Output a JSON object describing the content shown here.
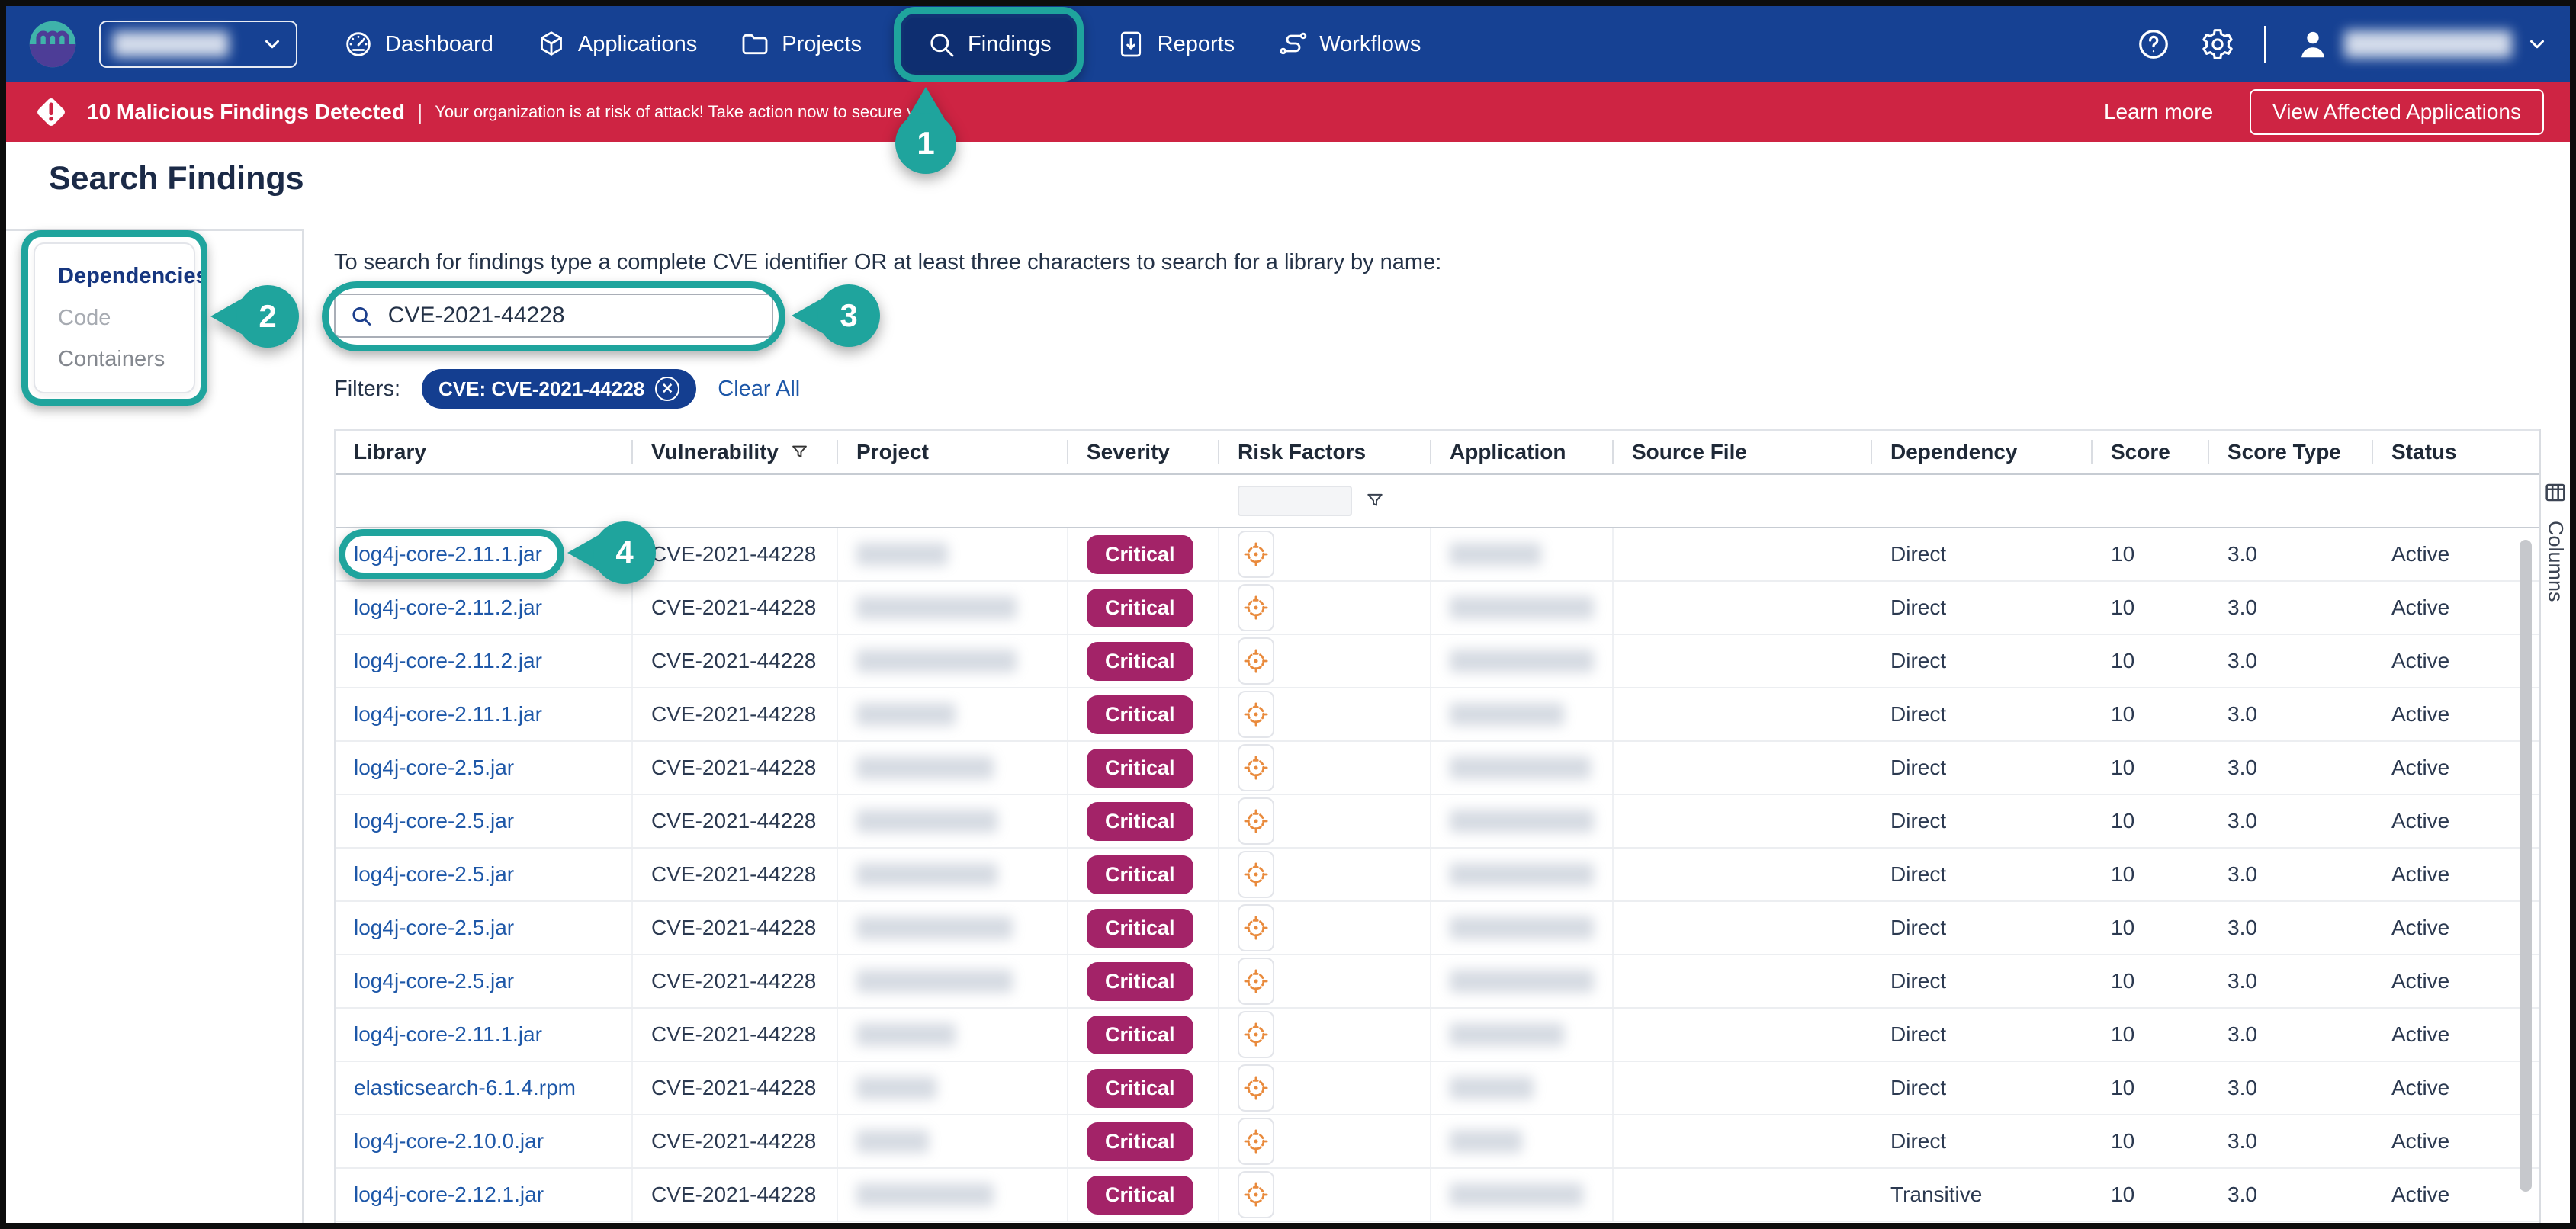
{
  "colors": {
    "nav_blue": "#164193",
    "nav_active": "#0E2E70",
    "teal": "#1FA49D",
    "red": "#CE2443",
    "badge": "#A32368",
    "pill": "#143E90",
    "link": "#1D57A8",
    "orange": "#E98A3C"
  },
  "nav": {
    "logo_icon": "mend-logo-icon",
    "org_dropdown": {
      "redacted": true,
      "chevron_icon": "chevron-down-icon"
    },
    "items": [
      {
        "label": "Dashboard",
        "icon": "dashboard-icon",
        "active": false
      },
      {
        "label": "Applications",
        "icon": "applications-icon",
        "active": false
      },
      {
        "label": "Projects",
        "icon": "projects-icon",
        "active": false
      },
      {
        "label": "Findings",
        "icon": "findings-icon",
        "active": true
      },
      {
        "label": "Reports",
        "icon": "reports-icon",
        "active": false
      },
      {
        "label": "Workflows",
        "icon": "workflows-icon",
        "active": false
      }
    ],
    "right_icons": [
      "help-icon",
      "gear-icon",
      "user-icon",
      "chevron-down-icon"
    ]
  },
  "alert_banner": {
    "icon": "warning-diamond-icon",
    "title": "10 Malicious Findings Detected",
    "separator": "|",
    "message": "Your organization is at risk of attack! Take action now to secure your co",
    "learn_more": "Learn more",
    "action_button": "View Affected Applications"
  },
  "page": {
    "title": "Search Findings"
  },
  "sidebar": {
    "items": [
      {
        "label": "Dependencies",
        "active": true
      },
      {
        "label": "Code",
        "active": false
      },
      {
        "label": "Containers",
        "active": false
      }
    ]
  },
  "search": {
    "instruction": "To search for findings type a complete CVE identifier OR at least three characters to search for a library by name:",
    "icon": "search-icon",
    "value": "CVE-2021-44228"
  },
  "filters": {
    "label": "Filters:",
    "chips": [
      {
        "label": "CVE: CVE-2021-44228",
        "remove_icon": "remove-x-icon"
      }
    ],
    "clear_all": "Clear All"
  },
  "table": {
    "columns": [
      "Library",
      "Vulnerability",
      "Project",
      "Severity",
      "Risk Factors",
      "Application",
      "Source File",
      "Dependency",
      "Score",
      "Score Type",
      "Status"
    ],
    "sort_filter_icon": "funnel-icon",
    "risk_icon": "crosshair-target-icon",
    "rows": [
      {
        "library": "log4j-core-2.11.1.jar",
        "vulnerability": "CVE-2021-44228",
        "severity": "Critical",
        "dependency": "Direct",
        "score": "10",
        "score_type": "3.0",
        "status": "Active",
        "project_redacted": true,
        "application_redacted": true
      },
      {
        "library": "log4j-core-2.11.2.jar",
        "vulnerability": "CVE-2021-44228",
        "severity": "Critical",
        "dependency": "Direct",
        "score": "10",
        "score_type": "3.0",
        "status": "Active",
        "project_redacted": true,
        "application_redacted": true
      },
      {
        "library": "log4j-core-2.11.2.jar",
        "vulnerability": "CVE-2021-44228",
        "severity": "Critical",
        "dependency": "Direct",
        "score": "10",
        "score_type": "3.0",
        "status": "Active",
        "project_redacted": true,
        "application_redacted": true
      },
      {
        "library": "log4j-core-2.11.1.jar",
        "vulnerability": "CVE-2021-44228",
        "severity": "Critical",
        "dependency": "Direct",
        "score": "10",
        "score_type": "3.0",
        "status": "Active",
        "project_redacted": true,
        "application_redacted": true
      },
      {
        "library": "log4j-core-2.5.jar",
        "vulnerability": "CVE-2021-44228",
        "severity": "Critical",
        "dependency": "Direct",
        "score": "10",
        "score_type": "3.0",
        "status": "Active",
        "project_redacted": true,
        "application_redacted": true
      },
      {
        "library": "log4j-core-2.5.jar",
        "vulnerability": "CVE-2021-44228",
        "severity": "Critical",
        "dependency": "Direct",
        "score": "10",
        "score_type": "3.0",
        "status": "Active",
        "project_redacted": true,
        "application_redacted": true
      },
      {
        "library": "log4j-core-2.5.jar",
        "vulnerability": "CVE-2021-44228",
        "severity": "Critical",
        "dependency": "Direct",
        "score": "10",
        "score_type": "3.0",
        "status": "Active",
        "project_redacted": true,
        "application_redacted": true
      },
      {
        "library": "log4j-core-2.5.jar",
        "vulnerability": "CVE-2021-44228",
        "severity": "Critical",
        "dependency": "Direct",
        "score": "10",
        "score_type": "3.0",
        "status": "Active",
        "project_redacted": true,
        "application_redacted": true
      },
      {
        "library": "log4j-core-2.5.jar",
        "vulnerability": "CVE-2021-44228",
        "severity": "Critical",
        "dependency": "Direct",
        "score": "10",
        "score_type": "3.0",
        "status": "Active",
        "project_redacted": true,
        "application_redacted": true
      },
      {
        "library": "log4j-core-2.11.1.jar",
        "vulnerability": "CVE-2021-44228",
        "severity": "Critical",
        "dependency": "Direct",
        "score": "10",
        "score_type": "3.0",
        "status": "Active",
        "project_redacted": true,
        "application_redacted": true
      },
      {
        "library": "elasticsearch-6.1.4.rpm",
        "vulnerability": "CVE-2021-44228",
        "severity": "Critical",
        "dependency": "Direct",
        "score": "10",
        "score_type": "3.0",
        "status": "Active",
        "project_redacted": true,
        "application_redacted": true
      },
      {
        "library": "log4j-core-2.10.0.jar",
        "vulnerability": "CVE-2021-44228",
        "severity": "Critical",
        "dependency": "Direct",
        "score": "10",
        "score_type": "3.0",
        "status": "Active",
        "project_redacted": true,
        "application_redacted": true
      },
      {
        "library": "log4j-core-2.12.1.jar",
        "vulnerability": "CVE-2021-44228",
        "severity": "Critical",
        "dependency": "Transitive",
        "score": "10",
        "score_type": "3.0",
        "status": "Active",
        "project_redacted": true,
        "application_redacted": true
      }
    ],
    "columns_panel": {
      "label": "Columns",
      "icon": "columns-grid-icon"
    }
  },
  "annotations": [
    {
      "number": "1"
    },
    {
      "number": "2"
    },
    {
      "number": "3"
    },
    {
      "number": "4"
    }
  ]
}
